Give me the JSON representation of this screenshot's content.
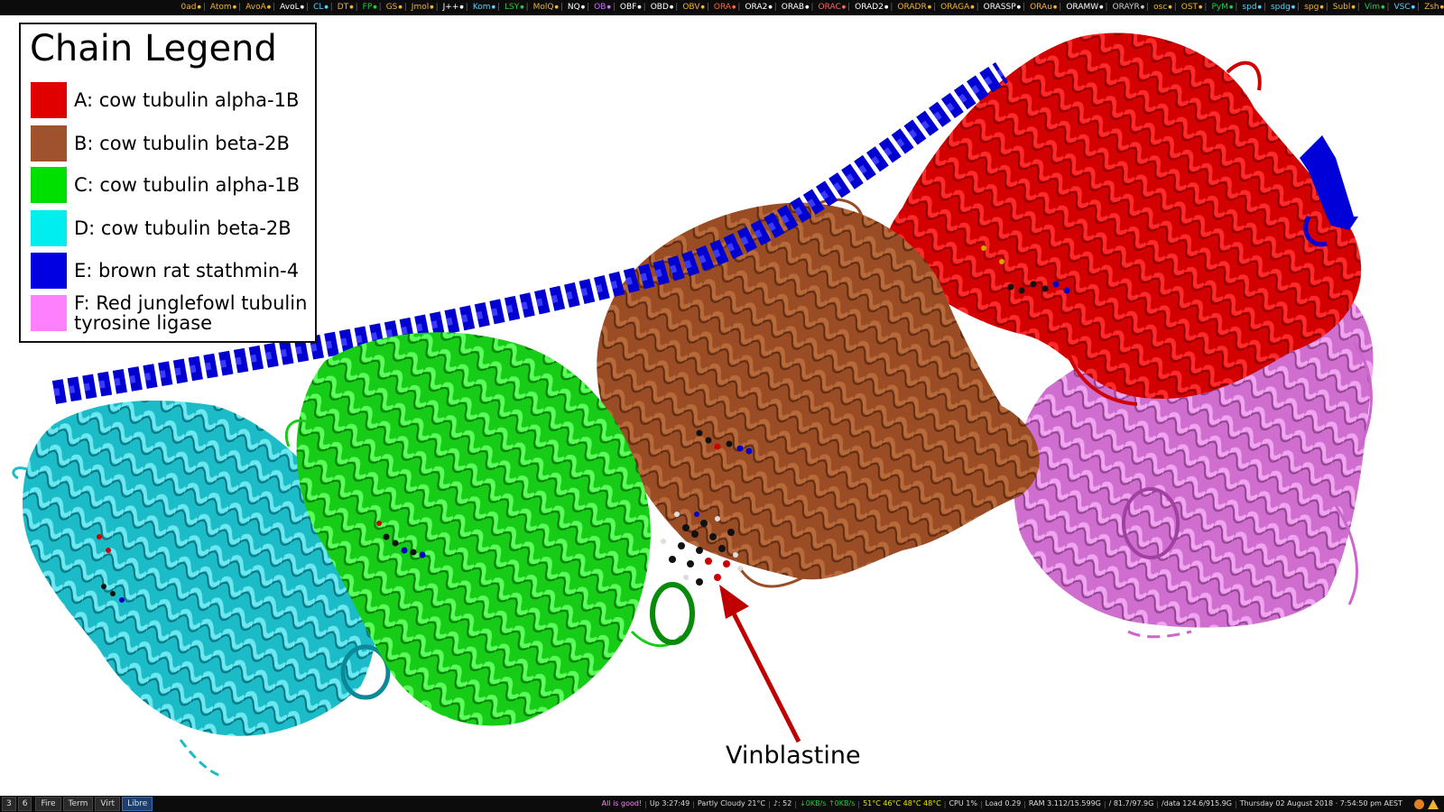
{
  "topbar": {
    "items": [
      {
        "label": "0ad",
        "color": "#f2b233"
      },
      {
        "label": "Atom",
        "color": "#f2b233"
      },
      {
        "label": "AvoA",
        "color": "#f2b233"
      },
      {
        "label": "AvoL",
        "color": "#ffffff"
      },
      {
        "label": "CL",
        "color": "#55d0ff"
      },
      {
        "label": "DT",
        "color": "#f2b233"
      },
      {
        "label": "FP",
        "color": "#22cc44"
      },
      {
        "label": "GS",
        "color": "#f2b233"
      },
      {
        "label": "Jmol",
        "color": "#f2b233"
      },
      {
        "label": "J++",
        "color": "#ffffff"
      },
      {
        "label": "Kom",
        "color": "#55d0ff"
      },
      {
        "label": "LSY",
        "color": "#22cc44"
      },
      {
        "label": "MolQ",
        "color": "#f2b233"
      },
      {
        "label": "NQ",
        "color": "#ffffff"
      },
      {
        "label": "OB",
        "color": "#d070ff"
      },
      {
        "label": "OBF",
        "color": "#ffffff"
      },
      {
        "label": "OBD",
        "color": "#ffffff"
      },
      {
        "label": "OBV",
        "color": "#f2b233"
      },
      {
        "label": "ORA",
        "color": "#ff6633"
      },
      {
        "label": "ORA2",
        "color": "#ffffff"
      },
      {
        "label": "ORAB",
        "color": "#ffffff"
      },
      {
        "label": "ORAC",
        "color": "#ff6666"
      },
      {
        "label": "ORAD2",
        "color": "#ffffff"
      },
      {
        "label": "ORADR",
        "color": "#f2b233"
      },
      {
        "label": "ORAGA",
        "color": "#f2b233"
      },
      {
        "label": "ORASSP",
        "color": "#ffffff"
      },
      {
        "label": "ORAu",
        "color": "#f2b233"
      },
      {
        "label": "ORAMW",
        "color": "#ffffff"
      },
      {
        "label": "ORAYR",
        "color": "#cccccc"
      },
      {
        "label": "osc",
        "color": "#f2b233"
      },
      {
        "label": "OST",
        "color": "#f2b233"
      },
      {
        "label": "PyM",
        "color": "#22cc44"
      },
      {
        "label": "spd",
        "color": "#55d0ff"
      },
      {
        "label": "spdg",
        "color": "#55d0ff"
      },
      {
        "label": "spg",
        "color": "#f2b233"
      },
      {
        "label": "Subl",
        "color": "#f2b233"
      },
      {
        "label": "Vim",
        "color": "#22cc44"
      },
      {
        "label": "VSC",
        "color": "#55d0ff"
      },
      {
        "label": "Zsh",
        "color": "#f2b233"
      }
    ]
  },
  "legend": {
    "title": "Chain Legend",
    "entries": [
      {
        "label": "A: cow tubulin alpha-1B",
        "color": "#e00000"
      },
      {
        "label": "B: cow tubulin beta-2B",
        "color": "#a0522d"
      },
      {
        "label": "C: cow tubulin alpha-1B",
        "color": "#00e000"
      },
      {
        "label": "D: cow tubulin beta-2B",
        "color": "#00eeee"
      },
      {
        "label": "E: brown rat stathmin-4",
        "color": "#0000e0"
      },
      {
        "label": "F: Red junglefowl tubulin",
        "label2": "tyrosine ligase",
        "color": "#ff80ff"
      }
    ]
  },
  "annotation": {
    "label": "Vinblastine",
    "arrow_color": "#c00000"
  },
  "bottombar": {
    "workspaces": [
      "3",
      "6"
    ],
    "tasks": [
      {
        "label": "Fire",
        "active": false
      },
      {
        "label": "Term",
        "active": false
      },
      {
        "label": "Virt",
        "active": false
      },
      {
        "label": "Libre",
        "active": true
      }
    ],
    "status": [
      {
        "text": "All is good!",
        "color": "#ff80ff"
      },
      {
        "text": "Up 3:27:49",
        "color": "#dddddd"
      },
      {
        "text": "Partly Cloudy 21°C",
        "color": "#dddddd"
      },
      {
        "text": "♪: 52",
        "color": "#dddddd"
      },
      {
        "text": "↓0KB/s ↑0KB/s",
        "color": "#22cc44"
      },
      {
        "text": "51°C 46°C 48°C 48°C",
        "color": "#e8e800"
      },
      {
        "text": "CPU 1%",
        "color": "#dddddd"
      },
      {
        "text": "Load 0.29",
        "color": "#dddddd"
      },
      {
        "text": "RAM 3.112/15.599G",
        "color": "#dddddd"
      },
      {
        "text": "/ 81.7/97.9G",
        "color": "#dddddd"
      },
      {
        "text": "/data 124.6/915.9G",
        "color": "#dddddd"
      },
      {
        "text": "Thursday 02 August 2018 ⋅ 7:54:50 pm AEST",
        "color": "#dddddd"
      }
    ]
  }
}
